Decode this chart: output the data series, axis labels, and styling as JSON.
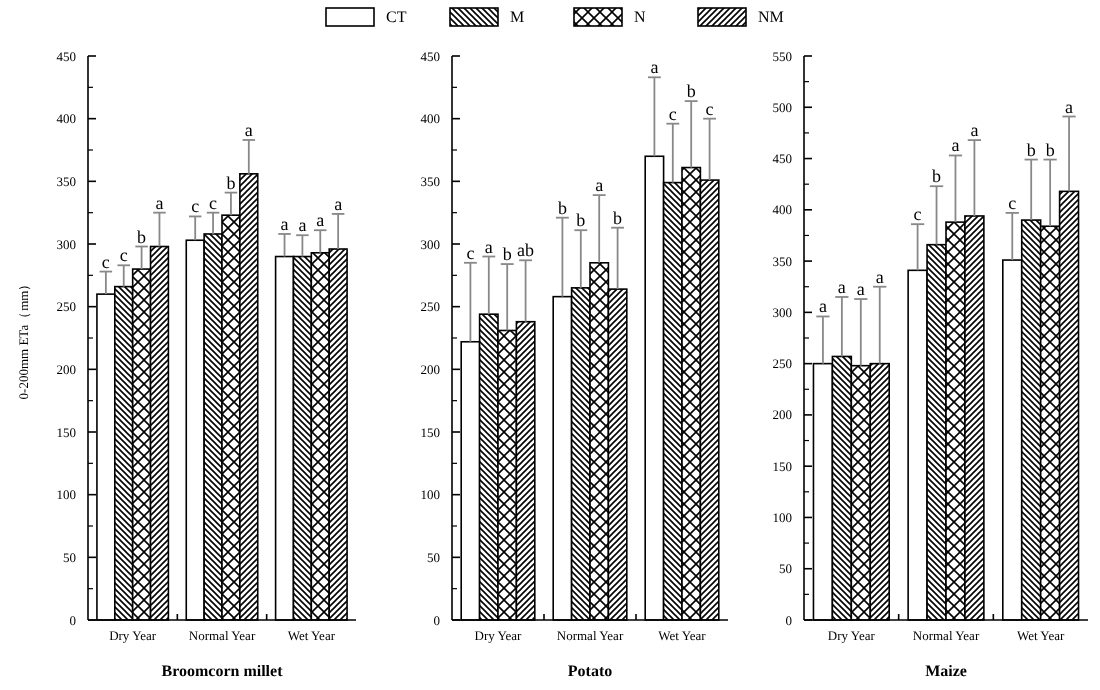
{
  "chart_data": [
    {
      "type": "bar",
      "xlabel": "Broomcorn millet",
      "ylabel": "0-200mm ETa（mm）",
      "categories": [
        "Dry Year",
        "Normal Year",
        "Wet Year"
      ],
      "ylim": [
        0,
        450
      ],
      "yticks": [
        0,
        50,
        100,
        150,
        200,
        250,
        300,
        350,
        400,
        450
      ],
      "legend": "top",
      "annotations": [
        "c",
        "c",
        "b",
        "a",
        "c",
        "c",
        "b",
        "a",
        "a",
        "a",
        "a",
        "a"
      ],
      "series": [
        {
          "name": "CT",
          "color": "#ffffff",
          "values": [
            260,
            303,
            290
          ],
          "errors": [
            [
              260,
              278
            ],
            [
              303,
              322
            ],
            [
              290,
              308
            ]
          ]
        },
        {
          "name": "M",
          "color": "#000000",
          "values": [
            266,
            308,
            290
          ],
          "errors": [
            [
              266,
              283
            ],
            [
              308,
              325
            ],
            [
              290,
              307
            ]
          ]
        },
        {
          "name": "N",
          "color": "#000000",
          "values": [
            280,
            323,
            293
          ],
          "errors": [
            [
              280,
              298
            ],
            [
              323,
              341
            ],
            [
              293,
              311
            ]
          ]
        },
        {
          "name": "NM",
          "color": "#000000",
          "values": [
            298,
            356,
            296
          ],
          "errors": [
            [
              298,
              325
            ],
            [
              356,
              383
            ],
            [
              296,
              324
            ]
          ]
        }
      ]
    },
    {
      "type": "bar",
      "xlabel": "Potato",
      "categories": [
        "Dry Year",
        "Normal Year",
        "Wet Year"
      ],
      "ylim": [
        0,
        450
      ],
      "yticks": [
        0,
        50,
        100,
        150,
        200,
        250,
        300,
        350,
        400,
        450
      ],
      "annotations": [
        "c",
        "a",
        "b",
        "ab",
        "b",
        "b",
        "a",
        "b",
        "a",
        "c",
        "b",
        "c"
      ],
      "series": [
        {
          "color": "#ffffff",
          "values": [
            222,
            258,
            370
          ],
          "errors": [
            [
              222,
              285
            ],
            [
              258,
              321
            ],
            [
              370,
              433
            ]
          ]
        },
        {
          "color": "#000000",
          "values": [
            244,
            265,
            349
          ],
          "errors": [
            [
              244,
              290
            ],
            [
              265,
              311
            ],
            [
              349,
              396
            ]
          ]
        },
        {
          "color": "#000000",
          "values": [
            231,
            285,
            361
          ],
          "errors": [
            [
              231,
              284
            ],
            [
              285,
              339
            ],
            [
              361,
              414
            ]
          ]
        },
        {
          "color": "#000000",
          "values": [
            238,
            264,
            351
          ],
          "errors": [
            [
              238,
              287
            ],
            [
              264,
              313
            ],
            [
              351,
              400
            ]
          ]
        }
      ]
    },
    {
      "type": "bar",
      "xlabel": "Maize",
      "categories": [
        "Dry Year",
        "Normal Year",
        "Wet Year"
      ],
      "ylim": [
        0,
        550
      ],
      "yticks": [
        0,
        50,
        100,
        150,
        200,
        250,
        300,
        350,
        400,
        450,
        500,
        550
      ],
      "annotations": [
        "a",
        "a",
        "a",
        "a",
        "c",
        "b",
        "a",
        "a",
        "c",
        "b",
        "b",
        "a"
      ],
      "series": [
        {
          "color": "#ffffff",
          "values": [
            250,
            341,
            351
          ],
          "errors": [
            [
              250,
              296
            ],
            [
              341,
              386
            ],
            [
              351,
              397
            ]
          ]
        },
        {
          "color": "#000000",
          "values": [
            257,
            366,
            390
          ],
          "errors": [
            [
              257,
              315
            ],
            [
              366,
              423
            ],
            [
              390,
              449
            ]
          ]
        },
        {
          "color": "#000000",
          "values": [
            248,
            388,
            384
          ],
          "errors": [
            [
              248,
              313
            ],
            [
              388,
              453
            ],
            [
              384,
              449
            ]
          ]
        },
        {
          "color": "#000000",
          "values": [
            250,
            394,
            418
          ],
          "errors": [
            [
              250,
              325
            ],
            [
              394,
              468
            ],
            [
              418,
              491
            ]
          ]
        }
      ]
    }
  ]
}
